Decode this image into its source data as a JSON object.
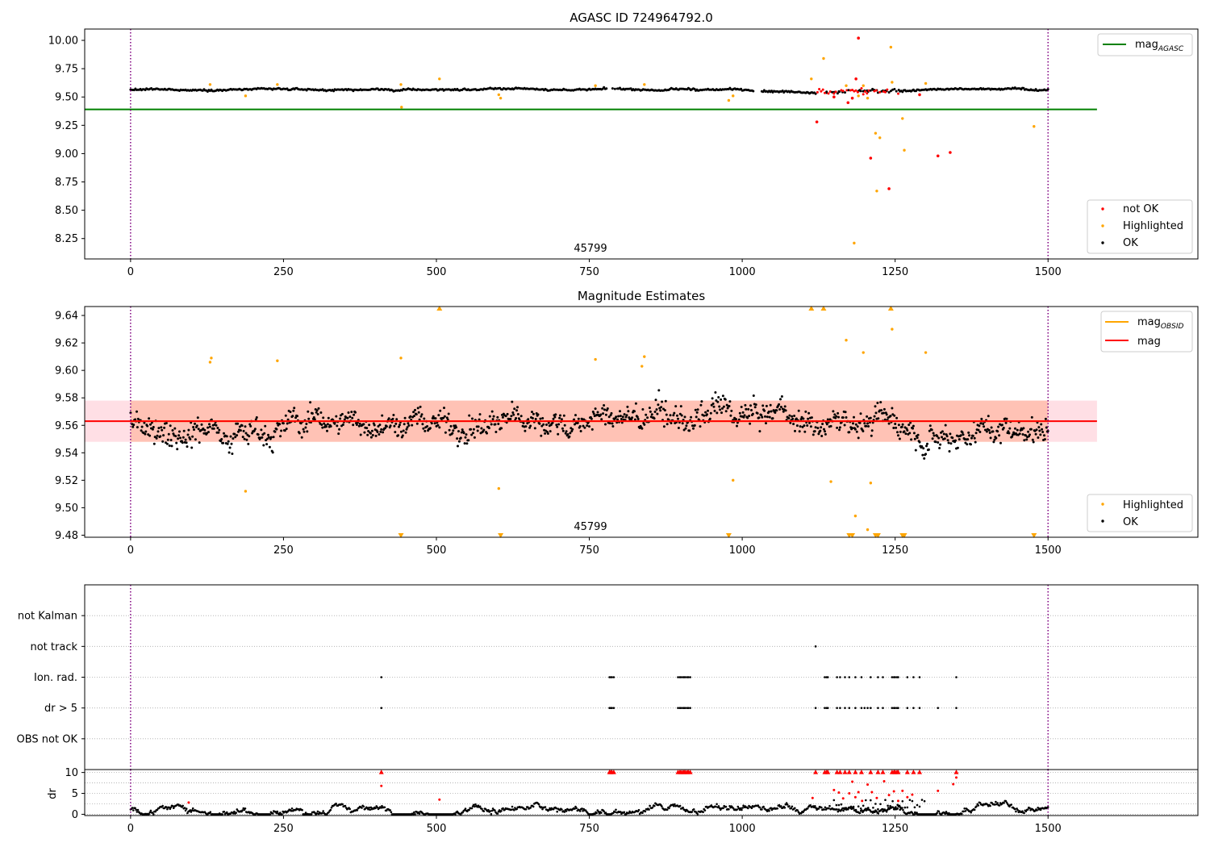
{
  "chart_data": [
    {
      "id": "panel-top",
      "type": "scatter",
      "title": "AGASC ID 724964792.0",
      "xlim": [
        -75,
        1745
      ],
      "ylim": [
        8.07,
        10.1
      ],
      "xticks": [
        0,
        250,
        500,
        750,
        1000,
        1250,
        1500
      ],
      "yticks": [
        8.25,
        8.5,
        8.75,
        9.0,
        9.25,
        9.5,
        9.75,
        10.0
      ],
      "ytick_labels": [
        "8.25",
        "8.50",
        "8.75",
        "9.00",
        "9.25",
        "9.50",
        "9.75",
        "10.00"
      ],
      "vlines": [
        0,
        1500
      ],
      "obsid_label": "45799",
      "obsid_x": 750,
      "hline": {
        "y": 9.39,
        "x": [
          -75,
          1580
        ],
        "color": "#008000"
      },
      "legend_lines": [
        {
          "label": "mag",
          "sub": "AGASC",
          "color": "#008000"
        }
      ],
      "legend_points": [
        {
          "label": "not OK",
          "color": "#ff0000"
        },
        {
          "label": "Highlighted",
          "color": "#ffa500"
        },
        {
          "label": "OK",
          "color": "#000000"
        }
      ],
      "ok_track": {
        "from": 0,
        "to": 1500,
        "step": 2,
        "center": 9.563,
        "spread": 0.012,
        "gaps": [
          [
            780,
            800
          ],
          [
            1020,
            1030
          ],
          [
            1120,
            1255
          ]
        ]
      },
      "highlighted": [
        [
          130,
          9.61
        ],
        [
          188,
          9.51
        ],
        [
          240,
          9.61
        ],
        [
          442,
          9.61
        ],
        [
          443,
          9.41
        ],
        [
          505,
          9.66
        ],
        [
          602,
          9.52
        ],
        [
          605,
          9.49
        ],
        [
          760,
          9.6
        ],
        [
          840,
          9.61
        ],
        [
          978,
          9.47
        ],
        [
          985,
          9.51
        ],
        [
          1113,
          9.66
        ],
        [
          1133,
          9.84
        ],
        [
          1170,
          9.6
        ],
        [
          1183,
          8.21
        ],
        [
          1190,
          9.51
        ],
        [
          1198,
          9.6
        ],
        [
          1205,
          9.49
        ],
        [
          1218,
          9.18
        ],
        [
          1220,
          8.67
        ],
        [
          1225,
          9.14
        ],
        [
          1243,
          9.94
        ],
        [
          1245,
          9.63
        ],
        [
          1262,
          9.31
        ],
        [
          1265,
          9.03
        ],
        [
          1300,
          9.62
        ],
        [
          1477,
          9.24
        ]
      ],
      "not_ok": [
        [
          1122,
          9.28
        ],
        [
          1150,
          9.5
        ],
        [
          1173,
          9.45
        ],
        [
          1180,
          9.49
        ],
        [
          1186,
          9.66
        ],
        [
          1190,
          10.02
        ],
        [
          1210,
          8.96
        ],
        [
          1240,
          8.69
        ],
        [
          1290,
          9.52
        ],
        [
          1320,
          8.98
        ],
        [
          1340,
          9.01
        ]
      ],
      "not_ok_cluster": {
        "from": 1120,
        "to": 1255,
        "step": 3,
        "center": 9.55,
        "spread": 0.03
      }
    },
    {
      "id": "panel-mid",
      "type": "scatter",
      "title": "Magnitude Estimates",
      "xlim": [
        -75,
        1745
      ],
      "ylim": [
        9.4785,
        9.6465
      ],
      "xticks": [
        0,
        250,
        500,
        750,
        1000,
        1250,
        1500
      ],
      "yticks": [
        9.48,
        9.5,
        9.52,
        9.54,
        9.56,
        9.58,
        9.6,
        9.62,
        9.64
      ],
      "ytick_labels": [
        "9.48",
        "9.50",
        "9.52",
        "9.54",
        "9.56",
        "9.58",
        "9.60",
        "9.62",
        "9.64"
      ],
      "vlines": [
        0,
        1500
      ],
      "obsid_label": "45799",
      "obsid_x": 750,
      "mag_line": {
        "y": 9.563,
        "x": [
          -75,
          1580
        ],
        "color": "#ff0000"
      },
      "mag_obsid_line": {
        "y": 9.563,
        "x": [
          0,
          1500
        ],
        "color": "#ffa500"
      },
      "band_outer": {
        "y": [
          9.548,
          9.578
        ],
        "x": [
          -75,
          1580
        ],
        "color": "#ffc0cb"
      },
      "band_inner": {
        "y": [
          9.548,
          9.578
        ],
        "x": [
          0,
          1500
        ],
        "color": "#ffa07a"
      },
      "legend_lines": [
        {
          "label": "mag",
          "sub": "OBSID",
          "color": "#ffa500"
        },
        {
          "label": "mag",
          "sub": "",
          "color": "#ff0000"
        }
      ],
      "legend_points": [
        {
          "label": "Highlighted",
          "color": "#ffa500"
        },
        {
          "label": "OK",
          "color": "#000000"
        }
      ],
      "ok_track": {
        "from": 0,
        "to": 1500,
        "step": 1.25,
        "center": 9.563,
        "spread": 0.013
      },
      "highlighted": [
        [
          130,
          9.606
        ],
        [
          132,
          9.609
        ],
        [
          188,
          9.512
        ],
        [
          240,
          9.607
        ],
        [
          442,
          9.609
        ],
        [
          602,
          9.514
        ],
        [
          760,
          9.608
        ],
        [
          836,
          9.603
        ],
        [
          840,
          9.61
        ],
        [
          985,
          9.52
        ],
        [
          1145,
          9.519
        ],
        [
          1170,
          9.622
        ],
        [
          1185,
          9.494
        ],
        [
          1198,
          9.613
        ],
        [
          1205,
          9.484
        ],
        [
          1210,
          9.518
        ],
        [
          1245,
          9.63
        ],
        [
          1300,
          9.613
        ]
      ],
      "clip_up": [
        505,
        1113,
        1133,
        1243
      ],
      "clip_down": [
        442,
        605,
        978,
        1175,
        1180,
        1218,
        1222,
        1262,
        1265,
        1477
      ]
    },
    {
      "id": "panel-flags",
      "type": "scatter",
      "categories": [
        "not Kalman",
        "not track",
        "Ion. rad.",
        "dr > 5",
        "OBS not OK"
      ],
      "xlim": [
        -75,
        1745
      ],
      "vlines": [
        0,
        1500
      ],
      "flags": {
        "not track": [
          1120
        ],
        "Ion. rad.": [
          410,
          783,
          785,
          787,
          790,
          895,
          898,
          900,
          903,
          905,
          907,
          910,
          912,
          915,
          1135,
          1138,
          1140,
          1155,
          1160,
          1168,
          1175,
          1185,
          1195,
          1210,
          1222,
          1230,
          1245,
          1248,
          1250,
          1253,
          1255,
          1270,
          1280,
          1290,
          1350
        ],
        "dr > 5": [
          410,
          783,
          785,
          787,
          790,
          895,
          898,
          900,
          903,
          905,
          907,
          910,
          912,
          915,
          1120,
          1135,
          1138,
          1140,
          1155,
          1160,
          1168,
          1175,
          1185,
          1195,
          1200,
          1205,
          1210,
          1222,
          1230,
          1245,
          1248,
          1250,
          1253,
          1255,
          1270,
          1280,
          1290,
          1320,
          1350
        ]
      }
    },
    {
      "id": "panel-dr",
      "type": "scatter",
      "ylabel": "dr",
      "xlim": [
        -75,
        1745
      ],
      "ylim": [
        -0.3,
        10.7
      ],
      "xticks": [
        0,
        250,
        500,
        750,
        1000,
        1250,
        1500
      ],
      "yticks": [
        0,
        5,
        10
      ],
      "ytick_labels": [
        "0",
        "5",
        "10"
      ],
      "vlines": [
        0,
        1500
      ],
      "ok_track": {
        "from": 0,
        "to": 1500,
        "step": 1.5,
        "center": 1.1,
        "spread": 0.5
      },
      "capped": [
        410,
        783,
        785,
        787,
        790,
        895,
        898,
        900,
        903,
        905,
        907,
        910,
        912,
        915,
        1120,
        1135,
        1138,
        1140,
        1155,
        1160,
        1168,
        1175,
        1185,
        1195,
        1210,
        1222,
        1230,
        1245,
        1248,
        1250,
        1253,
        1255,
        1270,
        1280,
        1290,
        1350
      ],
      "not_ok": [
        [
          95,
          2.8
        ],
        [
          410,
          6.8
        ],
        [
          505,
          3.5
        ],
        [
          1115,
          3.9
        ],
        [
          1150,
          5.8
        ],
        [
          1158,
          5.2
        ],
        [
          1165,
          3.8
        ],
        [
          1175,
          5.0
        ],
        [
          1180,
          7.8
        ],
        [
          1185,
          4.1
        ],
        [
          1190,
          5.3
        ],
        [
          1196,
          3.2
        ],
        [
          1205,
          7.1
        ],
        [
          1212,
          5.3
        ],
        [
          1220,
          3.9
        ],
        [
          1232,
          7.9
        ],
        [
          1240,
          4.6
        ],
        [
          1248,
          5.5
        ],
        [
          1255,
          3.2
        ],
        [
          1262,
          5.6
        ],
        [
          1270,
          4.1
        ],
        [
          1278,
          4.7
        ],
        [
          1320,
          5.6
        ],
        [
          1345,
          7.2
        ],
        [
          1350,
          8.8
        ]
      ]
    }
  ]
}
